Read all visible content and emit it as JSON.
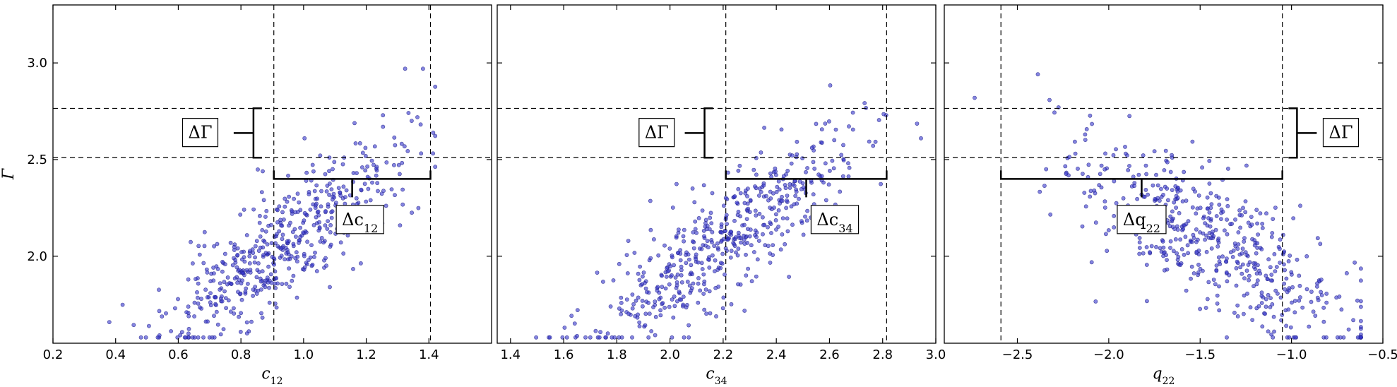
{
  "chart_data": [
    {
      "type": "scatter",
      "xlabel": "c",
      "xlabel_sub": "12",
      "ylabel": "Γ",
      "xlim": [
        0.2,
        1.6
      ],
      "ylim": [
        1.55,
        3.3
      ],
      "xticks": [
        0.2,
        0.4,
        0.6,
        0.8,
        1.0,
        1.2,
        1.4
      ],
      "xtick_labels": [
        "0.2",
        "0.4",
        "0.6",
        "0.8",
        "1.0",
        "1.2",
        "1.4"
      ],
      "yticks": [
        2.0,
        2.5,
        3.0
      ],
      "ytick_labels": [
        "2.0",
        "2.5",
        "3.0"
      ],
      "vlines": [
        0.905,
        1.405
      ],
      "hlines": [
        2.51,
        2.765
      ],
      "horizontal_bracket": {
        "y": 2.4,
        "x0": 0.905,
        "x1": 1.405,
        "label": "Δc",
        "label_sub": "12",
        "label_at": [
          1.18,
          2.19
        ]
      },
      "vertical_bracket": {
        "x": 0.84,
        "y0": 2.51,
        "y1": 2.765,
        "side": "left",
        "label": "ΔΓ",
        "label_at": [
          0.67,
          2.64
        ]
      },
      "scatter": {
        "n": 520,
        "seed": 11,
        "x_mean": 0.93,
        "x_sd": 0.19,
        "x_min": 0.38,
        "x_max": 1.42,
        "y_intercept": 2.06,
        "y_slope": 1.12,
        "y_noise": 0.15,
        "y_min": 1.58,
        "y_max": 2.97
      }
    },
    {
      "type": "scatter",
      "xlabel": "c",
      "xlabel_sub": "34",
      "ylabel": "",
      "xlim": [
        1.35,
        3.0
      ],
      "ylim": [
        1.55,
        3.3
      ],
      "xticks": [
        1.4,
        1.6,
        1.8,
        2.0,
        2.2,
        2.4,
        2.6,
        2.8,
        3.0
      ],
      "xtick_labels": [
        "1.4",
        "1.6",
        "1.8",
        "2.0",
        "2.2",
        "2.4",
        "2.6",
        "2.8",
        "3.0"
      ],
      "yticks": [
        2.0,
        2.5,
        3.0
      ],
      "ytick_labels": [],
      "vlines": [
        2.21,
        2.815
      ],
      "hlines": [
        2.51,
        2.765
      ],
      "horizontal_bracket": {
        "y": 2.4,
        "x0": 2.21,
        "x1": 2.815,
        "label": "Δc",
        "label_sub": "34",
        "label_at": [
          2.62,
          2.19
        ]
      },
      "vertical_bracket": {
        "x": 2.13,
        "y0": 2.51,
        "y1": 2.765,
        "side": "left",
        "label": "ΔΓ",
        "label_at": [
          1.95,
          2.64
        ]
      },
      "scatter": {
        "n": 520,
        "seed": 37,
        "x_mean": 2.22,
        "x_sd": 0.25,
        "x_min": 1.42,
        "x_max": 2.95,
        "y_intercept": 2.1,
        "y_slope": 0.95,
        "y_noise": 0.15,
        "y_min": 1.58,
        "y_max": 2.96
      }
    },
    {
      "type": "scatter",
      "xlabel": "q",
      "xlabel_sub": "22",
      "ylabel": "",
      "xlim": [
        -2.9,
        -0.5
      ],
      "ylim": [
        1.55,
        3.3
      ],
      "xticks": [
        -2.5,
        -2.0,
        -1.5,
        -1.0,
        -0.5
      ],
      "xtick_labels": [
        "−2.5",
        "−2.0",
        "−1.5",
        "−1.0",
        "−0.5"
      ],
      "yticks": [
        2.0,
        2.5,
        3.0
      ],
      "ytick_labels": [],
      "vlines": [
        -2.59,
        -1.05
      ],
      "hlines": [
        2.51,
        2.765
      ],
      "horizontal_bracket": {
        "y": 2.4,
        "x0": -2.59,
        "x1": -1.05,
        "label": "Δq",
        "label_sub": "22",
        "label_at": [
          -1.82,
          2.19
        ]
      },
      "vertical_bracket": {
        "x": -0.97,
        "y0": 2.51,
        "y1": 2.765,
        "side": "right",
        "label": "ΔΓ",
        "label_at": [
          -0.73,
          2.64
        ]
      },
      "scatter": {
        "n": 520,
        "seed": 73,
        "x_mean": -1.42,
        "x_sd": 0.42,
        "x_min": -2.82,
        "x_max": -0.62,
        "y_intercept": 2.05,
        "y_slope": -0.55,
        "y_noise": 0.17,
        "y_min": 1.58,
        "y_max": 2.96
      }
    }
  ]
}
